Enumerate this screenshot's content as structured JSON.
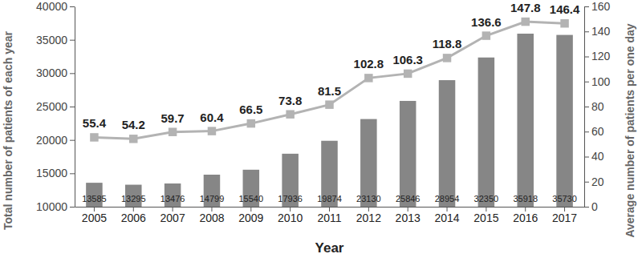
{
  "chart_data": {
    "type": "bar",
    "xlabel": "Year",
    "ylabel": "Total number of patients of each year",
    "y2label": "Average number of patients per one day",
    "categories": [
      "2005",
      "2006",
      "2007",
      "2008",
      "2009",
      "2010",
      "2011",
      "2012",
      "2013",
      "2014",
      "2015",
      "2016",
      "2017"
    ],
    "series": [
      {
        "type": "bar",
        "color": "#868686",
        "values": [
          13585,
          13295,
          13476,
          14799,
          15540,
          17936,
          19874,
          23130,
          25846,
          28954,
          32350,
          35918,
          35730
        ]
      },
      {
        "type": "line",
        "axis": "y2",
        "color": "#b3b3b3",
        "marker": "square",
        "line_style": "solid",
        "values": [
          55.4,
          54.2,
          59.7,
          60.4,
          66.5,
          73.8,
          81.5,
          102.8,
          106.3,
          118.8,
          136.6,
          147.8,
          146.4
        ]
      }
    ],
    "ylim": [
      10000,
      40000
    ],
    "yticks": [
      10000,
      15000,
      20000,
      25000,
      30000,
      35000,
      40000
    ],
    "y2lim": [
      0,
      160
    ],
    "y2ticks": [
      0,
      20,
      40,
      60,
      80,
      100,
      120,
      140,
      160
    ],
    "data_labels": true,
    "grid": false
  }
}
